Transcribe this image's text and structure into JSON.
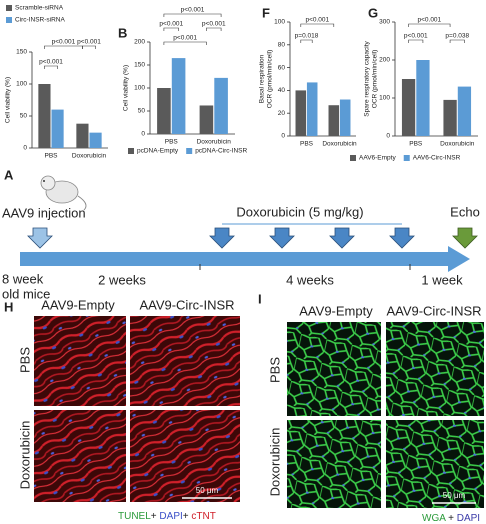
{
  "chart_data": [
    {
      "type": "bar",
      "y_label": [
        "Cell viability (%)"
      ],
      "categories": [
        "PBS",
        "Doxorubicin"
      ],
      "series": [
        {
          "name": "Scramble-siRNA",
          "color": "#5a5a5a",
          "values": [
            100,
            38
          ]
        },
        {
          "name": "Circ-INSR-siRNA",
          "color": "#5b9bd5",
          "values": [
            60,
            24
          ]
        }
      ],
      "ylim": [
        0,
        150
      ],
      "yticks": [
        0,
        50,
        100,
        150
      ],
      "annotations": [
        "p<0.001",
        "p<0.001",
        "p<0.001"
      ]
    },
    {
      "type": "bar",
      "label": "B",
      "y_label": [
        "Cell viability (%)"
      ],
      "categories": [
        "PBS",
        "Doxorubicin"
      ],
      "series": [
        {
          "name": "pcDNA-Empty",
          "color": "#5a5a5a",
          "values": [
            100,
            62
          ]
        },
        {
          "name": "pcDNA-Circ-INSR",
          "color": "#5b9bd5",
          "values": [
            165,
            122
          ]
        }
      ],
      "ylim": [
        0,
        200
      ],
      "yticks": [
        0,
        50,
        100,
        150,
        200
      ],
      "annotations": [
        "p<0.001",
        "p<0.001",
        "p<0.001",
        "p<0.001"
      ]
    },
    {
      "type": "bar",
      "label": "F",
      "y_label": [
        "Basal respiration",
        "OCR (pmol/min/cell)"
      ],
      "categories": [
        "PBS",
        "Doxorubicin"
      ],
      "series": [
        {
          "color": "#5a5a5a",
          "values": [
            40,
            27
          ]
        },
        {
          "color": "#5b9bd5",
          "values": [
            47,
            32
          ]
        }
      ],
      "ylim": [
        0,
        100
      ],
      "yticks": [
        0,
        20,
        40,
        60,
        80,
        100
      ],
      "annotations": [
        "p<0.001",
        "p=0.018"
      ]
    },
    {
      "type": "bar",
      "label": "G",
      "y_label": [
        "Spare respiratory capacity",
        "OCR (pmol/min/cell)"
      ],
      "categories": [
        "PBS",
        "Doxorubicin"
      ],
      "series": [
        {
          "name": "AAV6-Empty",
          "color": "#5a5a5a",
          "values": [
            150,
            95
          ]
        },
        {
          "name": "AAV6-Circ-INSR",
          "color": "#5b9bd5",
          "values": [
            200,
            130
          ]
        }
      ],
      "ylim": [
        0,
        300
      ],
      "yticks": [
        0,
        100,
        200,
        300
      ],
      "annotations": [
        "p<0.001",
        "p<0.001",
        "p=0.038"
      ]
    }
  ],
  "timeline": {
    "label": "A",
    "injection": "AAV9 injection",
    "treatment": "Doxorubicin (5 mg/kg)",
    "end": "Echo",
    "start": [
      "8 week",
      "old mice"
    ],
    "periods": [
      "2 weeks",
      "4 weeks",
      "1 week"
    ]
  },
  "panel_h": {
    "label": "H",
    "columns": [
      "AAV9-Empty",
      "AAV9-Circ-INSR"
    ],
    "rows": [
      "PBS",
      "Doxorubicin"
    ],
    "scale": "50 μm",
    "stain": [
      "TUNEL",
      "+ ",
      "DAPI",
      "+ ",
      "cTNT"
    ]
  },
  "panel_i": {
    "label": "I",
    "columns": [
      "AAV9-Empty",
      "AAV9-Circ-INSR"
    ],
    "rows": [
      "PBS",
      "Doxorubicin"
    ],
    "scale": "50 μm",
    "stain": [
      "WGA",
      " + ",
      "DAPI"
    ]
  }
}
